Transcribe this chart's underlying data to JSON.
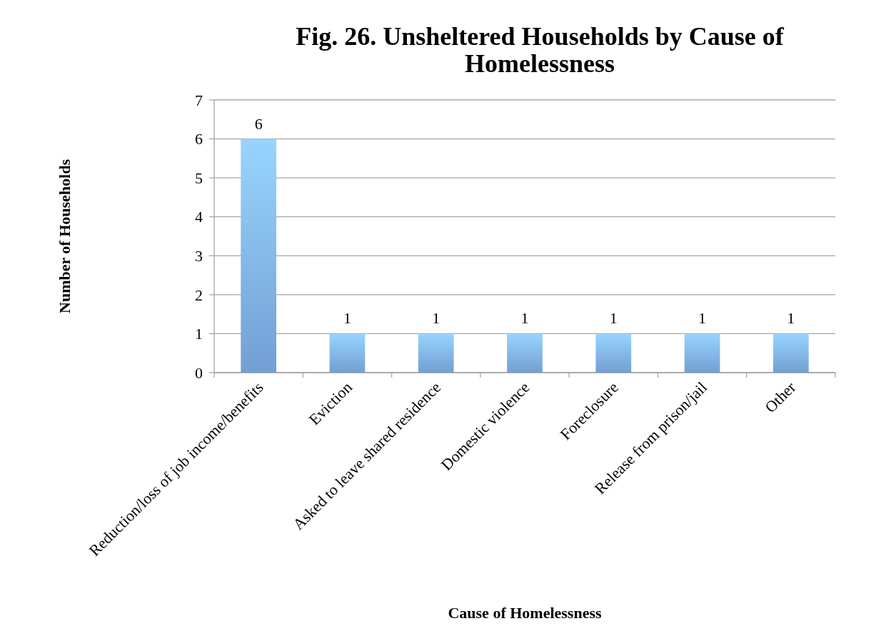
{
  "chart_data": {
    "type": "bar",
    "title": "Fig. 26. Unsheltered Households by Cause of Homelessness",
    "xlabel": "Cause of Homelessness",
    "ylabel": "Number of Households",
    "categories": [
      "Reduction/loss of job income/benefits",
      "Eviction",
      "Asked to leave shared residence",
      "Domestic violence",
      "Foreclosure",
      "Release from prison/jail",
      "Other"
    ],
    "values": [
      6,
      1,
      1,
      1,
      1,
      1,
      1
    ],
    "color": "#7fb1ea",
    "ylim": [
      0,
      7
    ],
    "yticks": [
      0,
      1,
      2,
      3,
      4,
      5,
      6,
      7
    ],
    "grid": "y",
    "data_labels": true
  }
}
